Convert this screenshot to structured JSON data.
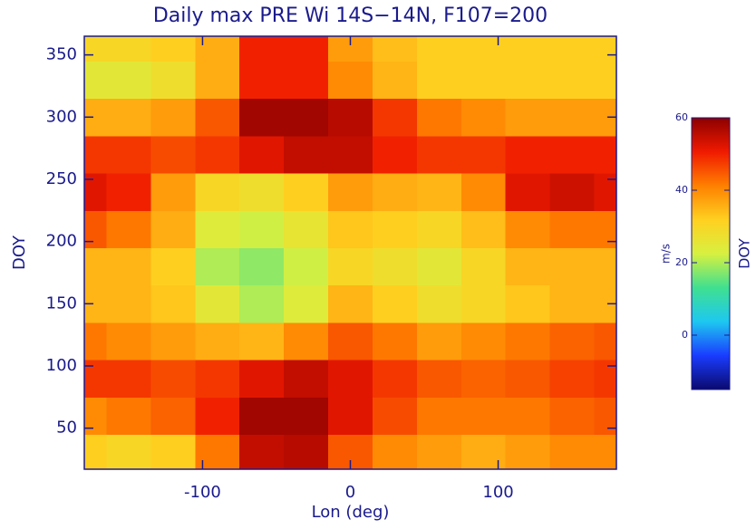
{
  "chart_data": {
    "type": "heatmap",
    "title": "Daily max PRE Wi 14S−14N, F107=200",
    "xlabel": "Lon (deg)",
    "ylabel": "DOY",
    "x": [
      -180,
      -150,
      -120,
      -90,
      -60,
      -30,
      0,
      30,
      60,
      90,
      120,
      150,
      180
    ],
    "y": [
      30,
      60,
      90,
      120,
      150,
      180,
      210,
      240,
      270,
      300,
      330,
      360
    ],
    "z": [
      [
        32,
        30,
        32,
        42,
        55,
        56,
        45,
        40,
        38,
        36,
        38,
        40,
        40
      ],
      [
        40,
        42,
        44,
        50,
        58,
        58,
        52,
        46,
        42,
        42,
        42,
        44,
        45
      ],
      [
        48,
        48,
        46,
        48,
        52,
        55,
        52,
        48,
        45,
        44,
        45,
        47,
        48
      ],
      [
        42,
        40,
        38,
        36,
        35,
        40,
        45,
        42,
        38,
        40,
        42,
        44,
        45
      ],
      [
        35,
        35,
        33,
        25,
        20,
        24,
        35,
        32,
        28,
        30,
        33,
        35,
        35
      ],
      [
        35,
        35,
        32,
        20,
        18,
        22,
        30,
        28,
        25,
        30,
        35,
        35,
        35
      ],
      [
        45,
        42,
        36,
        24,
        22,
        26,
        33,
        32,
        30,
        34,
        40,
        42,
        42
      ],
      [
        52,
        50,
        38,
        30,
        28,
        32,
        38,
        36,
        35,
        40,
        52,
        54,
        52
      ],
      [
        48,
        48,
        46,
        48,
        52,
        55,
        55,
        50,
        48,
        48,
        50,
        50,
        50
      ],
      [
        36,
        36,
        38,
        45,
        58,
        58,
        56,
        48,
        42,
        40,
        38,
        38,
        38
      ],
      [
        25,
        25,
        28,
        36,
        50,
        50,
        40,
        35,
        32,
        32,
        32,
        32,
        32
      ],
      [
        30,
        30,
        32,
        36,
        50,
        50,
        38,
        34,
        32,
        32,
        32,
        32,
        32
      ]
    ],
    "xlim": [
      -180,
      180
    ],
    "xticks": [
      -100,
      0,
      100
    ],
    "ylim": [
      17,
      365
    ],
    "yticks": [
      50,
      100,
      150,
      200,
      250,
      300,
      350
    ],
    "zlim": [
      -15,
      60
    ],
    "zticks": [
      0,
      20,
      40,
      60
    ],
    "colorbar_label": "m/s",
    "colorbar_title": "DOY",
    "colors": [
      "#0a0a6e",
      "#1a3cff",
      "#1ec8f0",
      "#40e090",
      "#d8f040",
      "#ffd020",
      "#ff8000",
      "#f01a00",
      "#8c0000"
    ],
    "axis_color": "#1a1a8c"
  }
}
